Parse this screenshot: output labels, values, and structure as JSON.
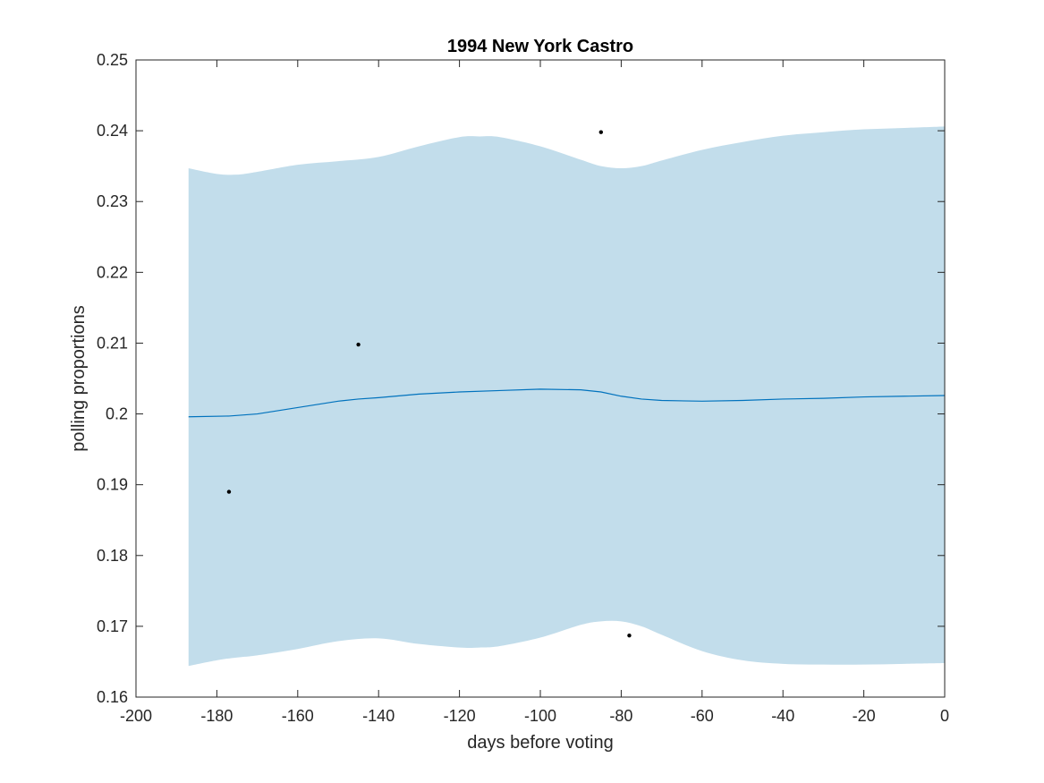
{
  "chart_data": {
    "type": "line",
    "title": "1994 New York Castro",
    "xlabel": "days before voting",
    "ylabel": "polling proportions",
    "xlim": [
      -200,
      0
    ],
    "ylim": [
      0.16,
      0.25
    ],
    "xticks": [
      -200,
      -180,
      -160,
      -140,
      -120,
      -100,
      -80,
      -60,
      -40,
      -20,
      0
    ],
    "xtick_labels": [
      "-200",
      "-180",
      "-160",
      "-140",
      "-120",
      "-100",
      "-80",
      "-60",
      "-40",
      "-20",
      "0"
    ],
    "yticks": [
      0.16,
      0.17,
      0.18,
      0.19,
      0.2,
      0.21,
      0.22,
      0.23,
      0.24,
      0.25
    ],
    "ytick_labels": [
      "0.16",
      "0.17",
      "0.18",
      "0.19",
      "0.2",
      "0.21",
      "0.22",
      "0.23",
      "0.24",
      "0.25"
    ],
    "grid": false,
    "mean_curve": {
      "x": [
        -187,
        -177,
        -170,
        -160,
        -150,
        -145,
        -140,
        -130,
        -120,
        -110,
        -100,
        -90,
        -85,
        -80,
        -75,
        -70,
        -60,
        -50,
        -40,
        -30,
        -20,
        -10,
        0
      ],
      "y": [
        0.1996,
        0.1997,
        0.2,
        0.2009,
        0.2018,
        0.2021,
        0.2023,
        0.2028,
        0.2031,
        0.2033,
        0.2035,
        0.2034,
        0.2031,
        0.2025,
        0.2021,
        0.2019,
        0.2018,
        0.2019,
        0.2021,
        0.2022,
        0.2024,
        0.2025,
        0.2026
      ],
      "color": "#0072BD"
    },
    "confidence_band": {
      "x": [
        -187,
        -180,
        -175,
        -170,
        -160,
        -150,
        -140,
        -130,
        -120,
        -115,
        -110,
        -100,
        -90,
        -85,
        -80,
        -75,
        -70,
        -60,
        -50,
        -40,
        -30,
        -20,
        -10,
        0
      ],
      "upper": [
        0.2347,
        0.2339,
        0.2338,
        0.2342,
        0.2352,
        0.2357,
        0.2363,
        0.2378,
        0.2391,
        0.2392,
        0.2391,
        0.2378,
        0.2359,
        0.235,
        0.2347,
        0.235,
        0.2358,
        0.2373,
        0.2384,
        0.2393,
        0.2398,
        0.2402,
        0.2404,
        0.2406
      ],
      "lower": [
        0.1644,
        0.1652,
        0.1656,
        0.1659,
        0.1668,
        0.1679,
        0.1683,
        0.1675,
        0.167,
        0.167,
        0.1672,
        0.1684,
        0.1702,
        0.1707,
        0.1707,
        0.17,
        0.1688,
        0.1665,
        0.1652,
        0.1647,
        0.1646,
        0.1646,
        0.1647,
        0.1648
      ],
      "color": "#C2DDEB"
    },
    "points": {
      "x": [
        -177,
        -145,
        -85,
        -78
      ],
      "y": [
        0.189,
        0.2098,
        0.2398,
        0.1687
      ],
      "color": "#000000"
    }
  }
}
